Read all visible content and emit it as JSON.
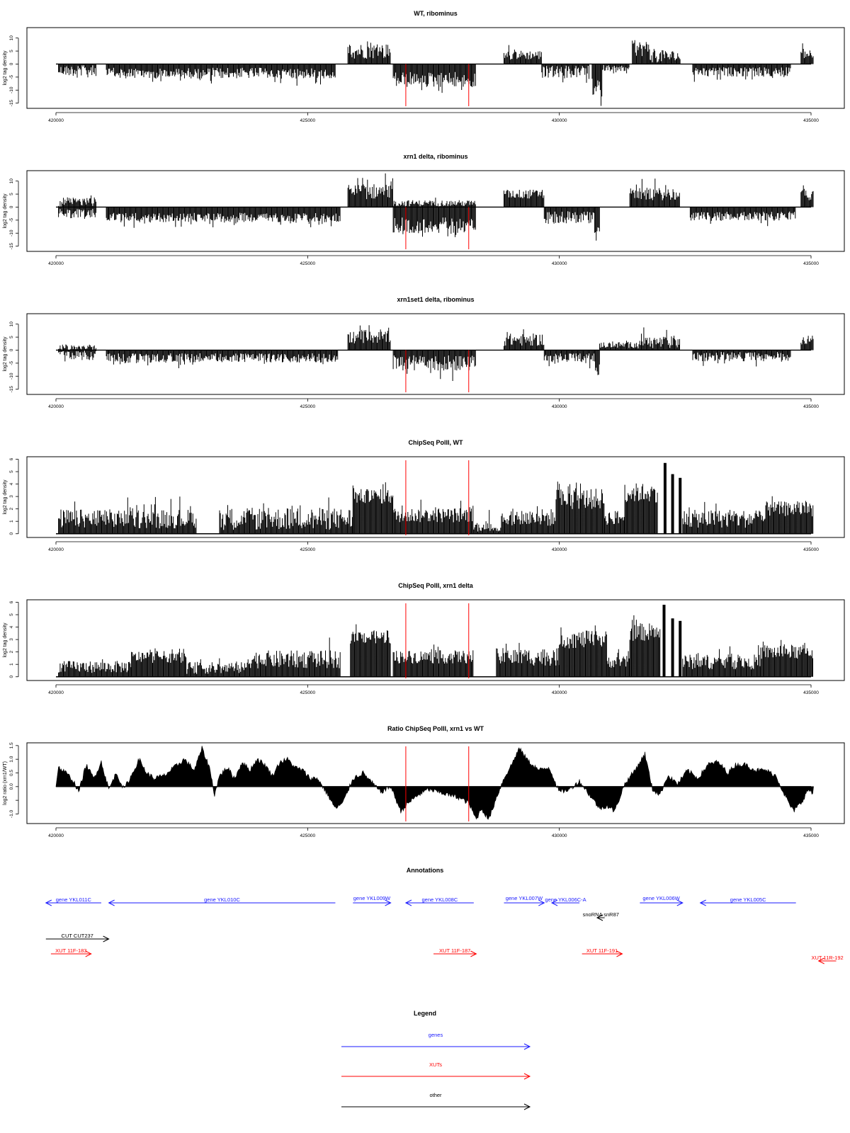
{
  "chart_data": [
    {
      "type": "bar",
      "title": "WT, ribominus",
      "ylabel": "log2 tag density",
      "ylim": [
        -17,
        14
      ],
      "yticks": [
        -15,
        -10,
        -5,
        0,
        5,
        10
      ],
      "xlim": [
        420000,
        435000
      ],
      "xticks": [
        420000,
        425000,
        430000,
        435000
      ],
      "markers": [
        426950,
        428200
      ],
      "segments": [
        {
          "x": [
            420050,
            420800
          ],
          "sign": -1,
          "level": 2.5,
          "spread": 3.5
        },
        {
          "x": [
            421000,
            425550
          ],
          "sign": -1,
          "level": 3.5,
          "spread": 3.5
        },
        {
          "x": [
            425800,
            426650
          ],
          "sign": 1,
          "level": 5,
          "spread": 5
        },
        {
          "x": [
            426700,
            428350
          ],
          "sign": -1,
          "level": 6,
          "spread": 5
        },
        {
          "x": [
            428900,
            429650
          ],
          "sign": 1,
          "level": 3.5,
          "spread": 3
        },
        {
          "x": [
            429650,
            430600
          ],
          "sign": -1,
          "level": 3,
          "spread": 4
        },
        {
          "x": [
            430650,
            430850
          ],
          "sign": -1,
          "level": 9,
          "spread": 6
        },
        {
          "x": [
            430850,
            431400
          ],
          "sign": -1,
          "level": 1.5,
          "spread": 2
        },
        {
          "x": [
            431450,
            431800
          ],
          "sign": 1,
          "level": 6,
          "spread": 5
        },
        {
          "x": [
            431800,
            432400
          ],
          "sign": 1,
          "level": 3,
          "spread": 4
        },
        {
          "x": [
            432650,
            434600
          ],
          "sign": -1,
          "level": 3,
          "spread": 3
        },
        {
          "x": [
            434800,
            435050
          ],
          "sign": 1,
          "level": 4,
          "spread": 3
        }
      ]
    },
    {
      "type": "bar",
      "title": "xrn1 delta, ribominus",
      "ylabel": "log2 tag density",
      "ylim": [
        -17,
        14
      ],
      "yticks": [
        -15,
        -10,
        -5,
        0,
        5,
        10
      ],
      "xlim": [
        420000,
        435000
      ],
      "xticks": [
        420000,
        425000,
        430000,
        435000
      ],
      "markers": [
        426950,
        428200
      ],
      "segments": [
        {
          "x": [
            420050,
            420800
          ],
          "sign": 1,
          "level": 2,
          "spread": 3
        },
        {
          "x": [
            420050,
            420800
          ],
          "sign": -1,
          "level": 2.5,
          "spread": 3
        },
        {
          "x": [
            421000,
            425650
          ],
          "sign": -1,
          "level": 4,
          "spread": 3
        },
        {
          "x": [
            425800,
            426700
          ],
          "sign": 1,
          "level": 6,
          "spread": 5
        },
        {
          "x": [
            426700,
            428350
          ],
          "sign": -1,
          "level": 7,
          "spread": 5
        },
        {
          "x": [
            426700,
            428350
          ],
          "sign": 1,
          "level": 1.5,
          "spread": 2
        },
        {
          "x": [
            428900,
            429700
          ],
          "sign": 1,
          "level": 5,
          "spread": 3
        },
        {
          "x": [
            429700,
            430700
          ],
          "sign": -1,
          "level": 4,
          "spread": 4
        },
        {
          "x": [
            430700,
            430800
          ],
          "sign": -1,
          "level": 10,
          "spread": 6
        },
        {
          "x": [
            431400,
            432400
          ],
          "sign": 1,
          "level": 5,
          "spread": 4
        },
        {
          "x": [
            432600,
            434700
          ],
          "sign": -1,
          "level": 3.5,
          "spread": 3
        },
        {
          "x": [
            434800,
            435050
          ],
          "sign": 1,
          "level": 5,
          "spread": 4
        }
      ]
    },
    {
      "type": "bar",
      "title": "xrn1set1 delta, ribominus",
      "ylabel": "log2 tag density",
      "ylim": [
        -17,
        14
      ],
      "yticks": [
        -15,
        -10,
        -5,
        0,
        5,
        10
      ],
      "xlim": [
        420000,
        435000
      ],
      "xticks": [
        420000,
        425000,
        430000,
        435000
      ],
      "markers": [
        426950,
        428200
      ],
      "segments": [
        {
          "x": [
            420050,
            420800
          ],
          "sign": -1,
          "level": 2,
          "spread": 3
        },
        {
          "x": [
            420050,
            420800
          ],
          "sign": 1,
          "level": 1,
          "spread": 2
        },
        {
          "x": [
            421000,
            425600
          ],
          "sign": -1,
          "level": 3,
          "spread": 3
        },
        {
          "x": [
            425800,
            426650
          ],
          "sign": 1,
          "level": 5,
          "spread": 4
        },
        {
          "x": [
            426700,
            428350
          ],
          "sign": -1,
          "level": 5,
          "spread": 5
        },
        {
          "x": [
            428900,
            429700
          ],
          "sign": 1,
          "level": 4,
          "spread": 4
        },
        {
          "x": [
            429700,
            430700
          ],
          "sign": -1,
          "level": 3,
          "spread": 3
        },
        {
          "x": [
            430700,
            430800
          ],
          "sign": -1,
          "level": 7,
          "spread": 5
        },
        {
          "x": [
            430800,
            431500
          ],
          "sign": 1,
          "level": 2,
          "spread": 2
        },
        {
          "x": [
            431500,
            432400
          ],
          "sign": 1,
          "level": 3,
          "spread": 4
        },
        {
          "x": [
            432650,
            434600
          ],
          "sign": -1,
          "level": 2.5,
          "spread": 3
        },
        {
          "x": [
            434800,
            435050
          ],
          "sign": 1,
          "level": 4,
          "spread": 3
        }
      ]
    },
    {
      "type": "bar",
      "title": "ChipSeq PolII, WT",
      "ylabel": "log2 tag density",
      "ylim": [
        -0.3,
        6.2
      ],
      "yticks": [
        0,
        1,
        2,
        3,
        4,
        5,
        6
      ],
      "xlim": [
        420000,
        435000
      ],
      "xticks": [
        420000,
        425000,
        430000,
        435000
      ],
      "markers": [
        426950,
        428200
      ],
      "segments": [
        {
          "x": [
            420050,
            422800
          ],
          "sign": 1,
          "level": 1.2,
          "spread": 1.3
        },
        {
          "x": [
            422800,
            423250
          ],
          "sign": 1,
          "level": 0,
          "spread": 0
        },
        {
          "x": [
            423250,
            425900
          ],
          "sign": 1,
          "level": 1.2,
          "spread": 1.5
        },
        {
          "x": [
            425900,
            426700
          ],
          "sign": 1,
          "level": 3,
          "spread": 1
        },
        {
          "x": [
            426700,
            428300
          ],
          "sign": 1,
          "level": 1.5,
          "spread": 1
        },
        {
          "x": [
            428300,
            428850
          ],
          "sign": 1,
          "level": 0.5,
          "spread": 1
        },
        {
          "x": [
            428850,
            429950
          ],
          "sign": 1,
          "level": 1.3,
          "spread": 1.2
        },
        {
          "x": [
            429950,
            430900
          ],
          "sign": 1,
          "level": 2.8,
          "spread": 1.4
        },
        {
          "x": [
            430900,
            431300
          ],
          "sign": 1,
          "level": 1.3,
          "spread": 1
        },
        {
          "x": [
            431300,
            431950
          ],
          "sign": 1,
          "level": 3.3,
          "spread": 1.3
        },
        {
          "x": [
            432450,
            434100
          ],
          "sign": 1,
          "level": 1.2,
          "spread": 1.2
        },
        {
          "x": [
            434100,
            435050
          ],
          "sign": 1,
          "level": 2,
          "spread": 1
        }
      ],
      "spikes": [
        [
          432100,
          5.7
        ],
        [
          432250,
          4.8
        ],
        [
          432400,
          4.5
        ]
      ]
    },
    {
      "type": "bar",
      "title": "ChipSeq PolII, xrn1 delta",
      "ylabel": "log2 tag density",
      "ylim": [
        -0.3,
        6.2
      ],
      "yticks": [
        0,
        1,
        2,
        3,
        4,
        5,
        6
      ],
      "xlim": [
        420000,
        435000
      ],
      "xticks": [
        420000,
        425000,
        430000,
        435000
      ],
      "markers": [
        426950,
        428200
      ],
      "segments": [
        {
          "x": [
            420050,
            421500
          ],
          "sign": 1,
          "level": 0.8,
          "spread": 0.8
        },
        {
          "x": [
            421500,
            422600
          ],
          "sign": 1,
          "level": 1.6,
          "spread": 0.8
        },
        {
          "x": [
            422600,
            423800
          ],
          "sign": 1,
          "level": 0.7,
          "spread": 0.8
        },
        {
          "x": [
            423800,
            425650
          ],
          "sign": 1,
          "level": 1.4,
          "spread": 1.2
        },
        {
          "x": [
            425850,
            426650
          ],
          "sign": 1,
          "level": 3.2,
          "spread": 0.9
        },
        {
          "x": [
            426700,
            428300
          ],
          "sign": 1,
          "level": 1.6,
          "spread": 0.9
        },
        {
          "x": [
            428750,
            430000
          ],
          "sign": 1,
          "level": 1.6,
          "spread": 1.2
        },
        {
          "x": [
            430000,
            430950
          ],
          "sign": 1,
          "level": 3,
          "spread": 1.2
        },
        {
          "x": [
            430950,
            431400
          ],
          "sign": 1,
          "level": 1.2,
          "spread": 0.8
        },
        {
          "x": [
            431400,
            432000
          ],
          "sign": 1,
          "level": 3.6,
          "spread": 1.2
        },
        {
          "x": [
            432450,
            434000
          ],
          "sign": 1,
          "level": 1.2,
          "spread": 1
        },
        {
          "x": [
            434000,
            435050
          ],
          "sign": 1,
          "level": 2,
          "spread": 1
        }
      ],
      "spikes": [
        [
          432080,
          5.8
        ],
        [
          432250,
          4.7
        ],
        [
          432400,
          4.5
        ]
      ]
    },
    {
      "type": "area",
      "title": "Ratio ChipSeq PolII, xrn1 vs WT",
      "ylabel": "log2 ratio (xrn1/WT)",
      "ylim": [
        -1.35,
        1.6
      ],
      "yticks": [
        -1.0,
        -0.5,
        0.0,
        0.5,
        1.0,
        1.5
      ],
      "ytick_labels": [
        "-1.0",
        "",
        "0.0",
        "0.5",
        "1.0",
        "1.5"
      ],
      "xlim": [
        420000,
        435000
      ],
      "xticks": [
        420000,
        425000,
        430000,
        435000
      ],
      "markers": [
        426950,
        428200
      ],
      "x": [
        420050,
        420200,
        420350,
        420450,
        420600,
        420750,
        420900,
        421050,
        421200,
        421350,
        421500,
        421650,
        421800,
        421950,
        422150,
        422350,
        422550,
        422750,
        422900,
        423050,
        423150,
        423250,
        423400,
        423550,
        423700,
        423850,
        424000,
        424150,
        424300,
        424450,
        424600,
        424750,
        424900,
        425050,
        425200,
        425400,
        425550,
        425700,
        425900,
        426100,
        426300,
        426450,
        426650,
        426850,
        427000,
        427200,
        427400,
        427600,
        427800,
        428000,
        428200,
        428350,
        428450,
        428600,
        428750,
        428900,
        429050,
        429200,
        429400,
        429600,
        429800,
        430000,
        430200,
        430400,
        430600,
        430800,
        430950,
        431100,
        431300,
        431500,
        431700,
        431850,
        432000,
        432150,
        432350,
        432550,
        432750,
        432950,
        433150,
        433350,
        433500,
        433700,
        433900,
        434100,
        434300,
        434500,
        434650,
        434800,
        434950,
        435050
      ],
      "y": [
        0.7,
        0.5,
        0.2,
        -0.2,
        0.8,
        0.3,
        0.9,
        -0.1,
        0.5,
        -0.1,
        0.4,
        1.0,
        0.5,
        0.3,
        0.4,
        0.7,
        1.0,
        0.6,
        1.4,
        0.7,
        -0.3,
        0.4,
        0.7,
        0.3,
        0.9,
        0.6,
        1.0,
        0.8,
        0.4,
        0.9,
        1.0,
        0.7,
        0.6,
        0.3,
        0.3,
        -0.3,
        -0.8,
        -0.6,
        0.3,
        0.5,
        0.1,
        -0.2,
        0.0,
        -0.9,
        -0.6,
        -0.3,
        -0.1,
        -0.2,
        -0.3,
        -0.4,
        -0.6,
        -1.2,
        -0.8,
        -1.2,
        -0.4,
        0.3,
        0.8,
        1.4,
        0.9,
        0.6,
        0.7,
        -0.2,
        -0.1,
        0.2,
        -0.3,
        -0.8,
        -0.7,
        -0.9,
        0.1,
        0.6,
        1.2,
        -0.1,
        -0.3,
        0.4,
        0.1,
        0.6,
        0.3,
        0.8,
        0.9,
        0.5,
        0.8,
        0.8,
        0.6,
        0.6,
        0.4,
        -0.4,
        -0.9,
        -0.6,
        -0.1,
        -0.3
      ]
    }
  ],
  "annotations": {
    "title": "Annotations",
    "items": [
      {
        "label": "gene YKL011C",
        "color": "#1a1aff",
        "start": 420900,
        "end": 419800,
        "row": 0
      },
      {
        "label": "gene YKL010C",
        "color": "#1a1aff",
        "start": 425550,
        "end": 421050,
        "row": 0
      },
      {
        "label": "gene YKL009W",
        "color": "#1a1aff",
        "start": 425900,
        "end": 426650,
        "row": 0,
        "label_above": true
      },
      {
        "label": "gene YKL008C",
        "color": "#1a1aff",
        "start": 428300,
        "end": 426950,
        "row": 0
      },
      {
        "label": "gene YKL007W",
        "color": "#1a1aff",
        "start": 428900,
        "end": 429700,
        "row": 0,
        "label_above": true
      },
      {
        "label": "gene YKL006C-A",
        "color": "#1a1aff",
        "start": 430400,
        "end": 429850,
        "row": 0
      },
      {
        "label": "gene YKL006W",
        "color": "#1a1aff",
        "start": 431600,
        "end": 432450,
        "row": 0,
        "label_above": true
      },
      {
        "label": "gene YKL005C",
        "color": "#1a1aff",
        "start": 434700,
        "end": 432800,
        "row": 0
      },
      {
        "label": "snoRNA snR87",
        "color": "#000000",
        "start": 430900,
        "end": 430750,
        "row": 1
      },
      {
        "label": "CUT CUT237",
        "color": "#000000",
        "start": 419800,
        "end": 421050,
        "row": 2
      },
      {
        "label": "XUT 11F-183",
        "color": "#ff0000",
        "start": 419900,
        "end": 420700,
        "row": 3
      },
      {
        "label": "XUT 11F-187",
        "color": "#ff0000",
        "start": 427500,
        "end": 428350,
        "row": 3
      },
      {
        "label": "XUT 11F-191",
        "color": "#ff0000",
        "start": 430450,
        "end": 431250,
        "row": 3
      },
      {
        "label": "XUT 11R-192",
        "color": "#ff0000",
        "start": 435500,
        "end": 435150,
        "row": 4
      }
    ]
  },
  "legend": {
    "title": "Legend",
    "entries": [
      {
        "label": "genes",
        "color": "#1a1aff"
      },
      {
        "label": "XUTs",
        "color": "#ff0000"
      },
      {
        "label": "other",
        "color": "#000000"
      }
    ]
  },
  "colors": {
    "bars": "#000000",
    "marker": "#ff0000",
    "axis": "#000000"
  }
}
